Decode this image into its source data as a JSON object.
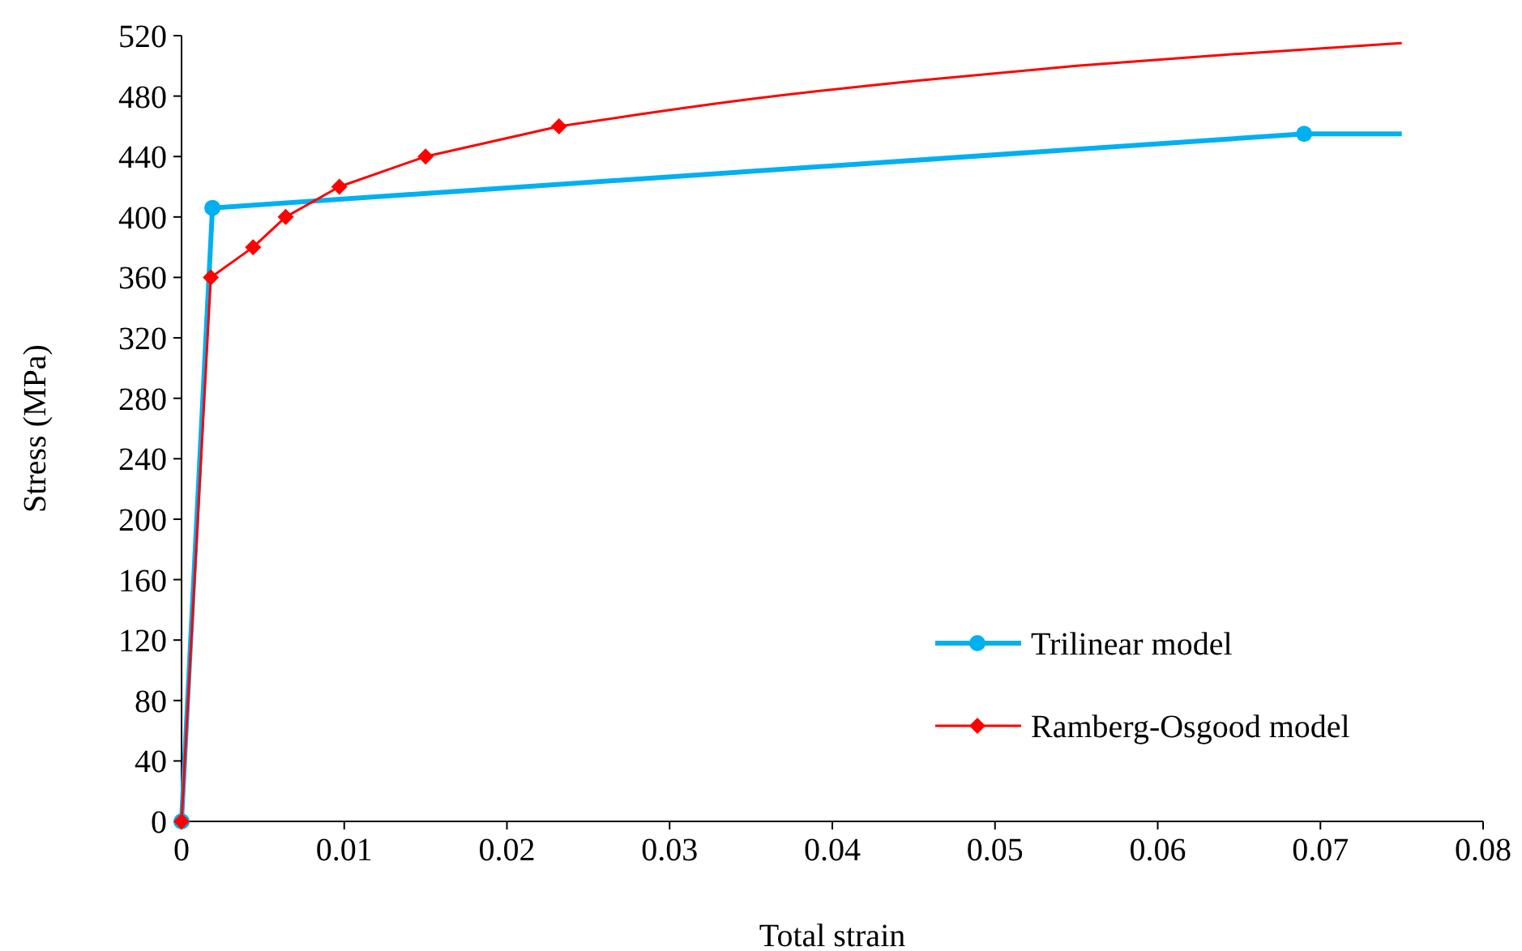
{
  "chart_data": {
    "type": "line",
    "xlabel": "Total strain",
    "ylabel": "Stress (MPa)",
    "xlim": [
      0,
      0.08
    ],
    "ylim": [
      0,
      520
    ],
    "xticks": [
      0,
      0.01,
      0.02,
      0.03,
      0.04,
      0.05,
      0.06,
      0.07,
      0.08
    ],
    "yticks": [
      0,
      40,
      80,
      120,
      160,
      200,
      240,
      280,
      320,
      360,
      400,
      440,
      480,
      520
    ],
    "grid": false,
    "legend": "bottom right",
    "series": [
      {
        "name": "Trilinear model",
        "color": "#00b0f0",
        "marker": "circle",
        "x": [
          0,
          0.0019,
          0.069
        ],
        "values": [
          0,
          406,
          455
        ]
      },
      {
        "color": "#00b0f0",
        "marker": "none",
        "x": [
          0.069,
          0.075
        ],
        "values": [
          455,
          455
        ]
      },
      {
        "color": "#ff0000",
        "marker": "none",
        "x": [
          0.0232,
          0.035,
          0.045,
          0.055,
          0.065,
          0.075
        ],
        "values": [
          460,
          478,
          490,
          500,
          508,
          515
        ]
      },
      {
        "name": "Ramberg-Osgood model",
        "color": "#ff0000",
        "marker": "diamond",
        "x": [
          0,
          0.0018,
          0.0044,
          0.0064,
          0.0097,
          0.015,
          0.0232
        ],
        "values": [
          0,
          360,
          380,
          400,
          420,
          440,
          460
        ]
      }
    ]
  }
}
